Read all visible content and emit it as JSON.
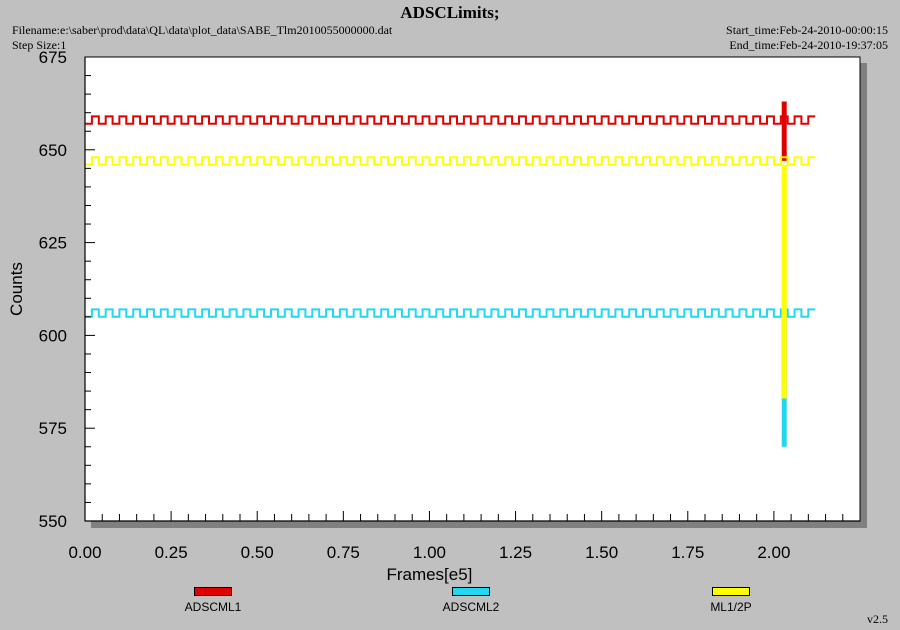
{
  "header": {
    "title": "ADSCLimits;",
    "filename": "Filename:e:\\saber\\prod\\data\\QL\\data\\plot_data\\SABE_Tlm2010055000000.dat",
    "step_size": "Step Size:1",
    "start_time": "Start_time:Feb-24-2010-00:00:15",
    "end_time": "End_time:Feb-24-2010-19:37:05"
  },
  "footer": {
    "version": "v2.5"
  },
  "colors": {
    "background": "#c0c0c0",
    "plot_bg": "#ffffff",
    "red": "#e00000",
    "cyan": "#22d8f0",
    "yellow": "#ffff00"
  },
  "chart_data": {
    "type": "line",
    "title": "ADSCLimits;",
    "xlabel": "Frames[e5]",
    "ylabel": "Counts",
    "xlim": [
      0.0,
      2.25
    ],
    "ylim": [
      550,
      675
    ],
    "xticks": [
      "0.00",
      "0.25",
      "0.50",
      "0.75",
      "1.00",
      "1.25",
      "1.50",
      "1.75",
      "2.00"
    ],
    "xtick_values": [
      0.0,
      0.25,
      0.5,
      0.75,
      1.0,
      1.25,
      1.5,
      1.75,
      2.0
    ],
    "yticks": [
      "550",
      "575",
      "600",
      "625",
      "650",
      "675"
    ],
    "ytick_values": [
      550,
      575,
      600,
      625,
      650,
      675
    ],
    "legend_placement": "bottom",
    "series": [
      {
        "name": "ADSCML1",
        "color": "#e00000",
        "low": 657,
        "high": 659,
        "x_end": 2.12,
        "spike": {
          "x": 2.03,
          "from": 647,
          "to": 663
        }
      },
      {
        "name": "ADSCML2",
        "color": "#22d8f0",
        "low": 605,
        "high": 607,
        "x_end": 2.12,
        "spike": {
          "x": 2.03,
          "from": 605,
          "to": 570
        }
      },
      {
        "name": "ML1/2P",
        "color": "#ffff00",
        "low": 646,
        "high": 648,
        "x_end": 2.12,
        "spike": {
          "x": 2.03,
          "from": 646,
          "to": 583
        }
      }
    ],
    "step_period": 0.04
  }
}
